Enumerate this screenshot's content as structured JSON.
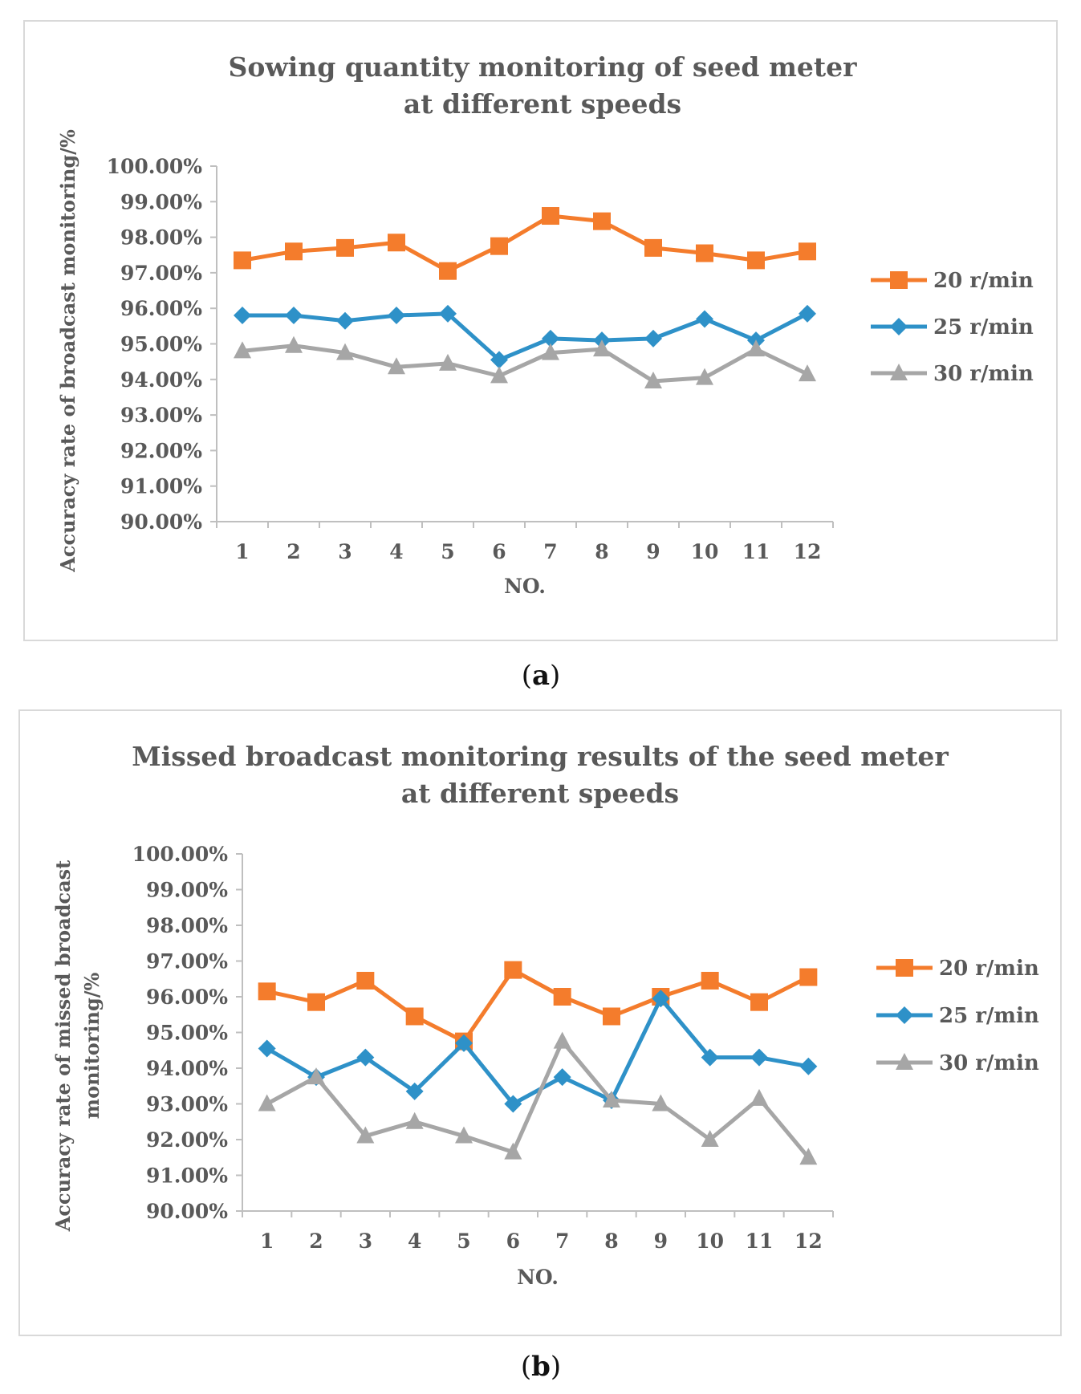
{
  "figure": {
    "captions": [
      {
        "open": "(",
        "letter": "a",
        "close": ")"
      },
      {
        "open": "(",
        "letter": "b",
        "close": ")"
      }
    ]
  },
  "colors": {
    "s20": "#f47c2c",
    "s25": "#2e91c8",
    "s30": "#a6a6a6",
    "axis": "#bfbfbf",
    "text": "#595959"
  },
  "chart_data": [
    {
      "type": "line",
      "title_lines": [
        "Sowing quantity monitoring of seed meter",
        "at different speeds"
      ],
      "xlabel": "NO.",
      "ylabel_lines": [
        "Accuracy rate of broadcast monitoring/%"
      ],
      "categories": [
        "1",
        "2",
        "3",
        "4",
        "5",
        "6",
        "7",
        "8",
        "9",
        "10",
        "11",
        "12"
      ],
      "ylim": [
        90,
        100
      ],
      "yticks": [
        "90.00%",
        "91.00%",
        "92.00%",
        "93.00%",
        "94.00%",
        "95.00%",
        "96.00%",
        "97.00%",
        "98.00%",
        "99.00%",
        "100.00%"
      ],
      "legend_position": "right",
      "series": [
        {
          "name": "20 r/min",
          "marker": "square",
          "color_key": "s20",
          "values": [
            97.35,
            97.6,
            97.7,
            97.85,
            97.05,
            97.75,
            98.6,
            98.45,
            97.7,
            97.55,
            97.35,
            97.6
          ]
        },
        {
          "name": "25 r/min",
          "marker": "diamond",
          "color_key": "s25",
          "values": [
            95.8,
            95.8,
            95.65,
            95.8,
            95.85,
            94.55,
            95.15,
            95.1,
            95.15,
            95.7,
            95.1,
            95.85
          ]
        },
        {
          "name": "30 r/min",
          "marker": "triangle",
          "color_key": "s30",
          "values": [
            94.8,
            94.95,
            94.75,
            94.35,
            94.45,
            94.1,
            94.75,
            94.85,
            93.95,
            94.05,
            94.85,
            94.15
          ]
        }
      ]
    },
    {
      "type": "line",
      "title_lines": [
        "Missed broadcast monitoring results of the seed meter",
        "at different speeds"
      ],
      "xlabel": "NO.",
      "ylabel_lines": [
        "Accuracy rate of missed broadcast",
        "monitoring/%"
      ],
      "categories": [
        "1",
        "2",
        "3",
        "4",
        "5",
        "6",
        "7",
        "8",
        "9",
        "10",
        "11",
        "12"
      ],
      "ylim": [
        90,
        100
      ],
      "yticks": [
        "90.00%",
        "91.00%",
        "92.00%",
        "93.00%",
        "94.00%",
        "95.00%",
        "96.00%",
        "97.00%",
        "98.00%",
        "99.00%",
        "100.00%"
      ],
      "legend_position": "right",
      "series": [
        {
          "name": "20 r/min",
          "marker": "square",
          "color_key": "s20",
          "values": [
            96.15,
            95.85,
            96.45,
            95.45,
            94.75,
            96.75,
            96.0,
            95.45,
            96.0,
            96.45,
            95.85,
            96.55
          ]
        },
        {
          "name": "25 r/min",
          "marker": "diamond",
          "color_key": "s25",
          "values": [
            94.55,
            93.75,
            94.3,
            93.35,
            94.7,
            93.0,
            93.75,
            93.1,
            95.95,
            94.3,
            94.3,
            94.05
          ]
        },
        {
          "name": "30 r/min",
          "marker": "triangle",
          "color_key": "s30",
          "values": [
            93.0,
            93.75,
            92.1,
            92.5,
            92.1,
            91.65,
            94.75,
            93.1,
            93.0,
            92.0,
            93.15,
            91.5
          ]
        }
      ]
    }
  ]
}
